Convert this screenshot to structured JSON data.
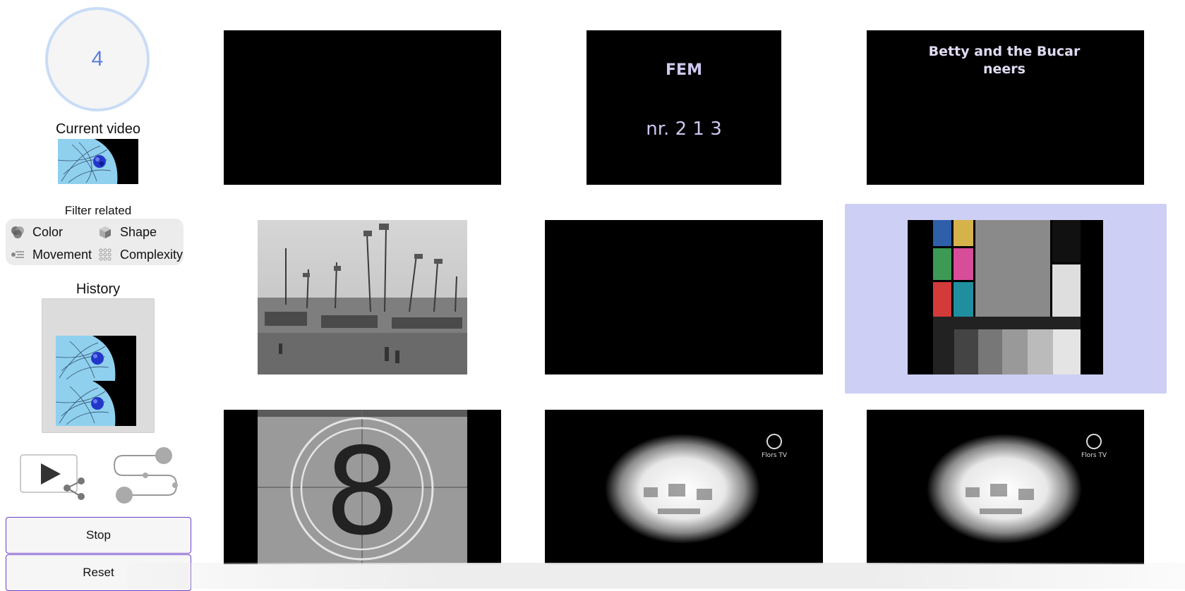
{
  "counter": {
    "value": "4"
  },
  "current_video": {
    "label": "Current video"
  },
  "filter": {
    "label": "Filter related",
    "options": [
      {
        "label": "Color",
        "icon": "color-icon"
      },
      {
        "label": "Shape",
        "icon": "shape-icon"
      },
      {
        "label": "Movement",
        "icon": "movement-icon"
      },
      {
        "label": "Complexity",
        "icon": "complexity-icon"
      }
    ]
  },
  "history": {
    "label": "History"
  },
  "buttons": {
    "stop": "Stop",
    "reset": "Reset"
  },
  "grid": {
    "video1": {
      "lines": [
        "",
        "",
        ""
      ]
    },
    "video2": {
      "logo": "FEM",
      "caption": "",
      "number": "nr. 2 1 3"
    },
    "video3": {
      "title": "Betty and the Bucar neers",
      "credits1": "",
      "credits2": "",
      "credits3": ""
    },
    "video6": {
      "bar_left": "",
      "bar_mid": "",
      "bar_right": ""
    },
    "video7": {
      "numeral": "8"
    },
    "video8": {
      "logo_text": "Flors TV"
    },
    "video9": {
      "logo_text": "Flors TV"
    }
  },
  "colors": {
    "accent": "#6b3fc8",
    "selected": "#cdd0f4",
    "counter": "#5b7fe0"
  }
}
